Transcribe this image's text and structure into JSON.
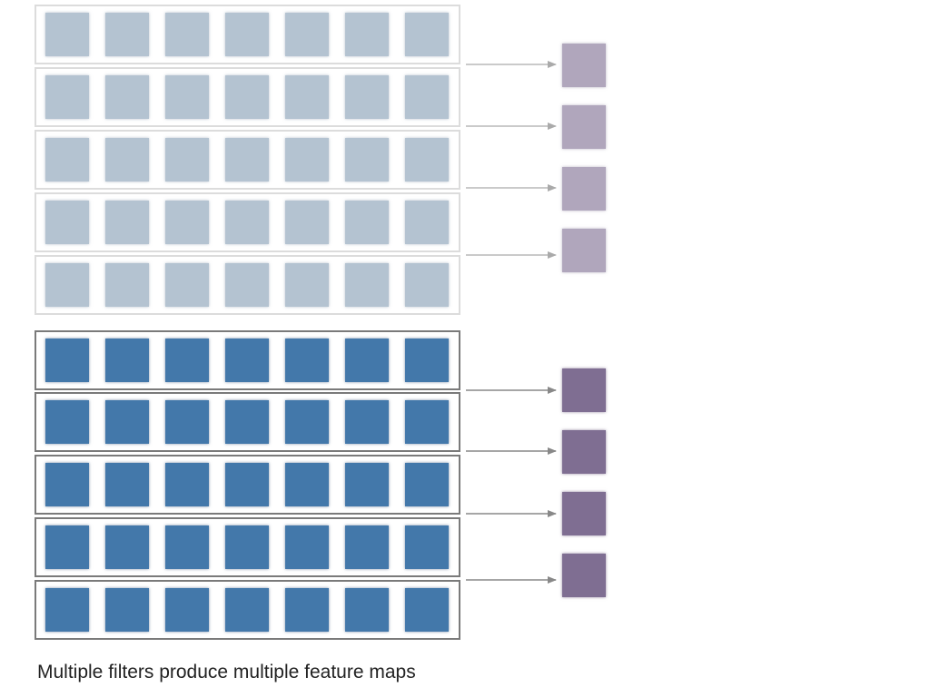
{
  "caption": "Multiple filters produce multiple feature maps",
  "colors": {
    "input_faded": "#b4c3d1",
    "input_active": "#4378aa",
    "output_faded": "#b0a6bc",
    "output_active": "#7f6e92",
    "frame_faded": "#dcdcdc",
    "frame_active": "#7a7a7a",
    "arrow_faded": "#aaaaaa",
    "arrow_active": "#888888"
  },
  "groups": [
    {
      "name": "previous",
      "rows": 5,
      "cells_per_row": 7,
      "outputs": 4
    },
    {
      "name": "current",
      "rows": 5,
      "cells_per_row": 7,
      "outputs": 4
    }
  ]
}
